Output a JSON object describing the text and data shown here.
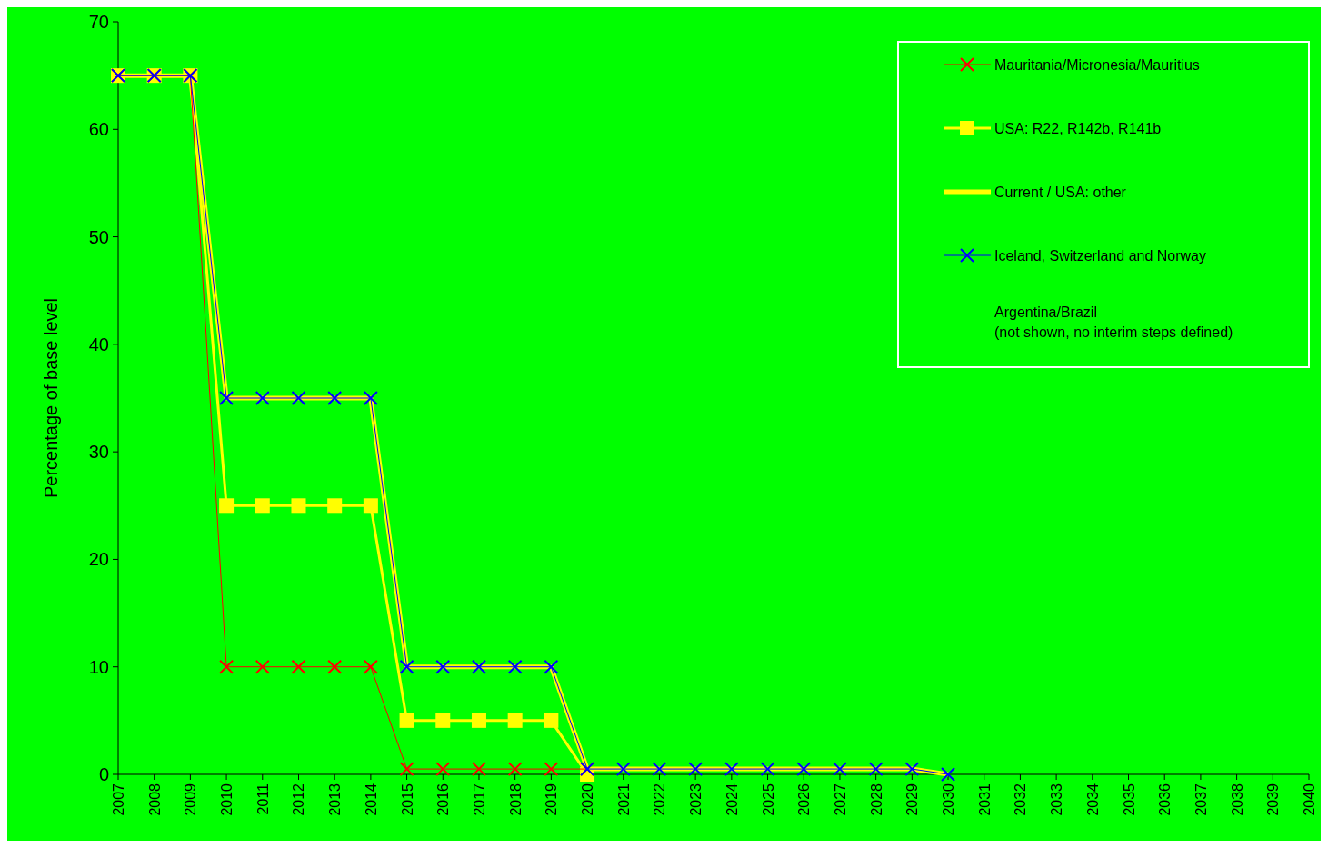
{
  "chart_data": {
    "type": "line",
    "ylabel": "Percentage of base level",
    "categories": [
      "2007",
      "2008",
      "2009",
      "2010",
      "2011",
      "2012",
      "2013",
      "2014",
      "2015",
      "2016",
      "2017",
      "2018",
      "2019",
      "2020",
      "2021",
      "2022",
      "2023",
      "2024",
      "2025",
      "2026",
      "2027",
      "2028",
      "2029",
      "2030",
      "2031",
      "2032",
      "2033",
      "2034",
      "2035",
      "2036",
      "2037",
      "2038",
      "2039",
      "2040"
    ],
    "ylim": [
      0,
      70
    ],
    "yticks": [
      0,
      10,
      20,
      30,
      40,
      50,
      60,
      70
    ],
    "grid": false,
    "legend": "top right",
    "series": [
      {
        "name": "Mauritania/Micronesia/Mauritius",
        "color": "#ff0000",
        "marker": "cross",
        "values": [
          65,
          65,
          65,
          10,
          10,
          10,
          10,
          10,
          0.5,
          0.5,
          0.5,
          0.5,
          0.5,
          0.5,
          null,
          null,
          null,
          null,
          null,
          null,
          null,
          null,
          null,
          null,
          null,
          null,
          null,
          null,
          null,
          null,
          null,
          null,
          null,
          null
        ]
      },
      {
        "name": "USA: R22, R142b, R141b",
        "color": "#ffff00",
        "marker": "square",
        "values": [
          65,
          65,
          65,
          25,
          25,
          25,
          25,
          25,
          5,
          5,
          5,
          5,
          5,
          0,
          null,
          null,
          null,
          null,
          null,
          null,
          null,
          null,
          null,
          null,
          null,
          null,
          null,
          null,
          null,
          null,
          null,
          null,
          null,
          null
        ]
      },
      {
        "name": "Current / USA: other",
        "color": "#ffff00",
        "marker": "none",
        "values": [
          65,
          65,
          65,
          35,
          35,
          35,
          35,
          35,
          10,
          10,
          10,
          10,
          10,
          0.5,
          0.5,
          0.5,
          0.5,
          0.5,
          0.5,
          0.5,
          0.5,
          0.5,
          0.5,
          0,
          null,
          null,
          null,
          null,
          null,
          null,
          null,
          null,
          null,
          null
        ]
      },
      {
        "name": "Iceland, Switzerland and Norway",
        "color": "#0000ff",
        "marker": "cross",
        "values": [
          65,
          65,
          65,
          35,
          35,
          35,
          35,
          35,
          10,
          10,
          10,
          10,
          10,
          0.5,
          0.5,
          0.5,
          0.5,
          0.5,
          0.5,
          0.5,
          0.5,
          0.5,
          0.5,
          0,
          null,
          null,
          null,
          null,
          null,
          null,
          null,
          null,
          null,
          null
        ]
      }
    ],
    "annotations": [
      "Argentina/Brazil\n(not shown, no interim steps defined)"
    ]
  }
}
